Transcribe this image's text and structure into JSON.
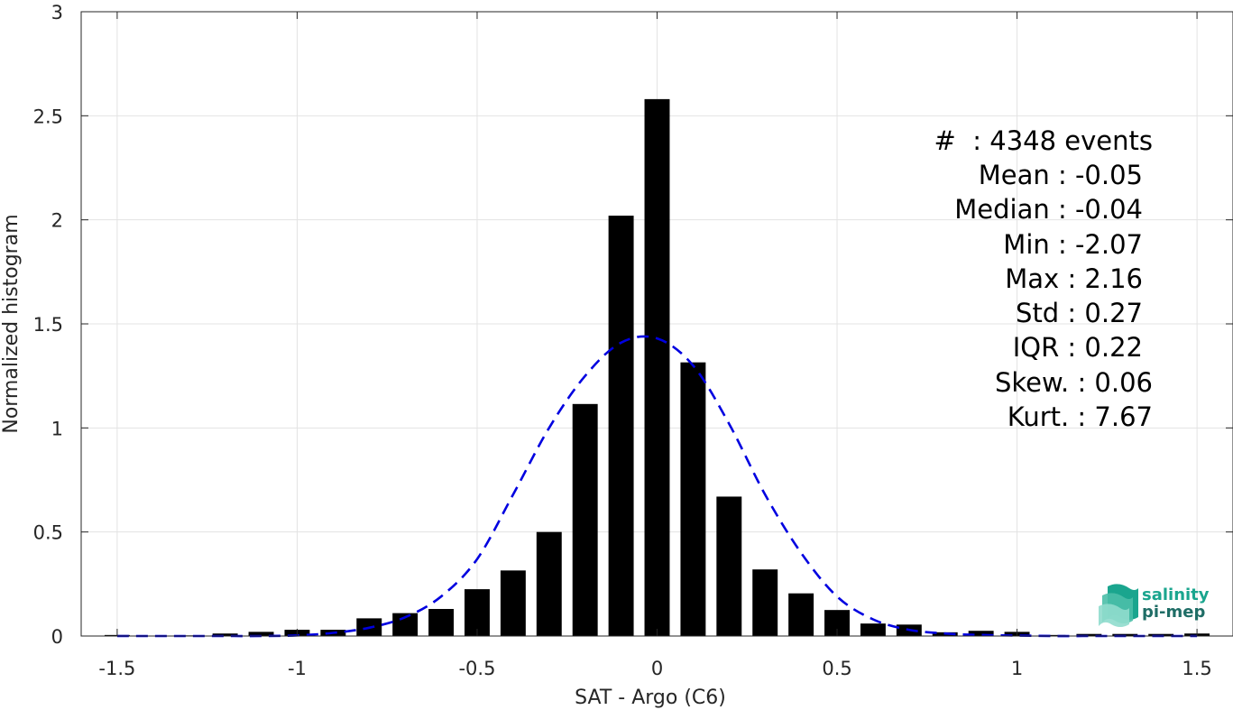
{
  "chart_data": {
    "type": "bar",
    "xlabel": "SAT - Argo (C6)",
    "ylabel": "Normalized histogram",
    "xlim": [
      -1.6,
      1.6
    ],
    "ylim": [
      0,
      3
    ],
    "xticks": [
      -1.5,
      -1,
      -0.5,
      0,
      0.5,
      1,
      1.5
    ],
    "xtick_labels": [
      "-1.5",
      "-1",
      "-0.5",
      "0",
      "0.5",
      "1",
      "1.5"
    ],
    "yticks": [
      0,
      0.5,
      1,
      1.5,
      2,
      2.5,
      3
    ],
    "ytick_labels": [
      "0",
      "0.5",
      "1",
      "1.5",
      "2",
      "2.5",
      "3"
    ],
    "grid": true,
    "bar_width": 0.07,
    "bar_color": "#000000",
    "fit_color": "#0000e0",
    "bars": {
      "x": [
        -1.5,
        -1.4,
        -1.3,
        -1.2,
        -1.1,
        -1.0,
        -0.9,
        -0.8,
        -0.7,
        -0.6,
        -0.5,
        -0.4,
        -0.3,
        -0.2,
        -0.1,
        0.0,
        0.1,
        0.2,
        0.3,
        0.4,
        0.5,
        0.6,
        0.7,
        0.8,
        0.9,
        1.0,
        1.1,
        1.2,
        1.3,
        1.4,
        1.5
      ],
      "y": [
        0.005,
        0.002,
        0.003,
        0.012,
        0.02,
        0.03,
        0.03,
        0.085,
        0.11,
        0.13,
        0.225,
        0.315,
        0.5,
        1.115,
        2.02,
        2.58,
        1.315,
        0.67,
        0.32,
        0.205,
        0.125,
        0.06,
        0.055,
        0.018,
        0.025,
        0.02,
        0.005,
        0.01,
        0.01,
        0.01,
        0.012
      ]
    },
    "fit": {
      "name": "",
      "x": [
        -1.5,
        -1.4,
        -1.3,
        -1.2,
        -1.1,
        -1.0,
        -0.9,
        -0.8,
        -0.7,
        -0.6,
        -0.5,
        -0.4,
        -0.3,
        -0.2,
        -0.1,
        0.0,
        0.1,
        0.2,
        0.3,
        0.4,
        0.5,
        0.6,
        0.7,
        0.8,
        0.9,
        1.0,
        1.1,
        1.2,
        1.3,
        1.4,
        1.5
      ],
      "y": [
        0.0,
        0.0,
        0.0,
        0.0,
        0.0,
        0.003,
        0.015,
        0.04,
        0.09,
        0.19,
        0.37,
        0.68,
        1.0,
        1.25,
        1.41,
        1.43,
        1.3,
        1.02,
        0.68,
        0.4,
        0.19,
        0.08,
        0.03,
        0.012,
        0.005,
        0.002,
        0.0,
        0.0,
        0.0,
        0.0,
        0.0
      ]
    },
    "annotations": [
      "#  : 4348 events",
      "Mean : -0.05",
      "Median : -0.04",
      "Min : -2.07",
      "Max : 2.16",
      "Std : 0.27",
      "IQR : 0.22",
      "Skew. : 0.06",
      "Kurt. : 7.67"
    ]
  },
  "logo": {
    "line1": "salinity",
    "line2": "pi-mep",
    "color1": "#1aa58e",
    "color2": "#1f6d66"
  }
}
